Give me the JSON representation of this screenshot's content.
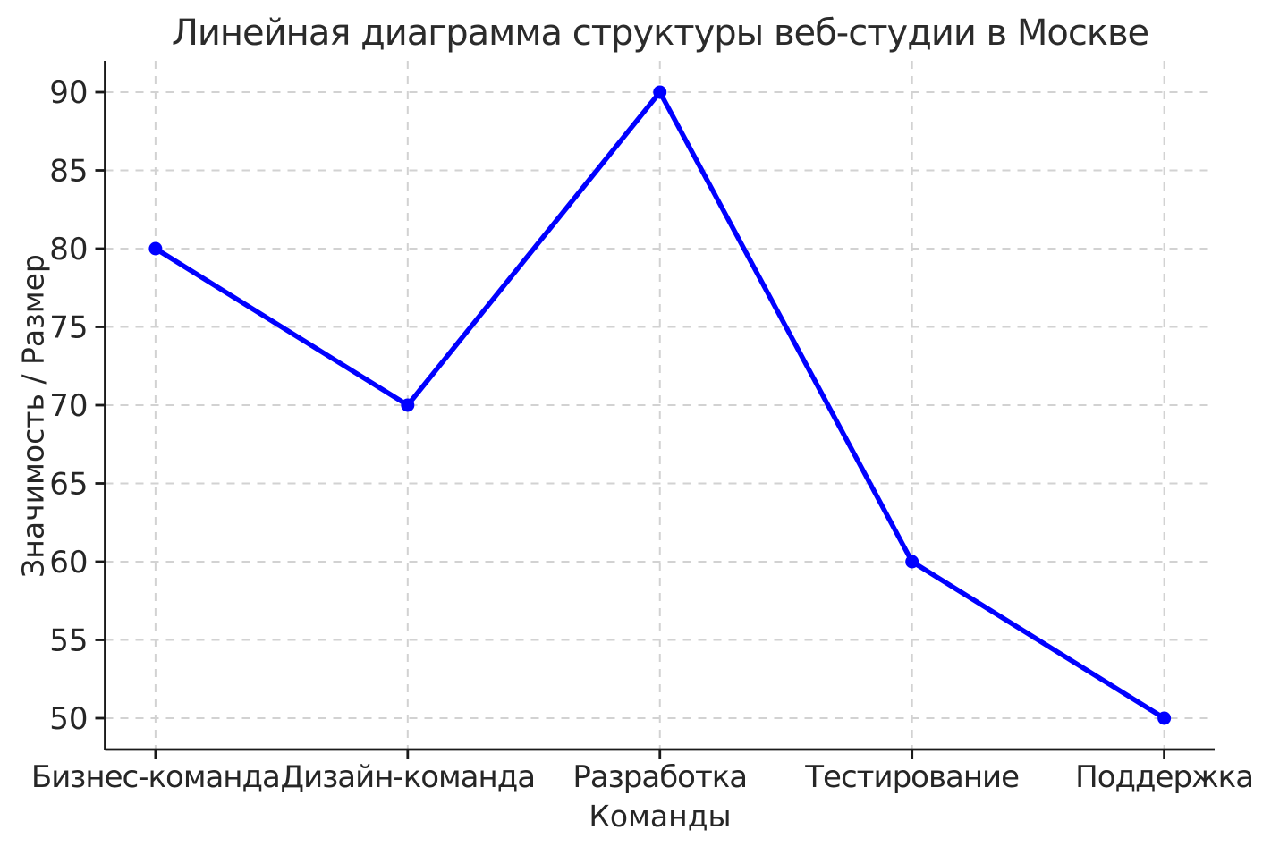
{
  "chart_data": {
    "type": "line",
    "title": "Линейная диаграмма структуры веб-студии в Москве",
    "xlabel": "Команды",
    "ylabel": "Значимость / Размер",
    "categories": [
      "Бизнес-команда",
      "Дизайн-команда",
      "Разработка",
      "Тестирование",
      "Поддержка"
    ],
    "values": [
      80,
      70,
      90,
      60,
      50
    ],
    "yticks": [
      50,
      55,
      60,
      65,
      70,
      75,
      80,
      85,
      90
    ],
    "ylim": [
      48,
      92
    ],
    "xlim": [
      -0.2,
      4.2
    ],
    "grid": true,
    "grid_style": "dashed",
    "legend": "none",
    "colors": {
      "line": "#0000ff",
      "marker": "#0000ff",
      "grid": "#d2d2d2",
      "axis": "#1a1a1a",
      "text": "#262626",
      "background": "#ffffff"
    }
  }
}
